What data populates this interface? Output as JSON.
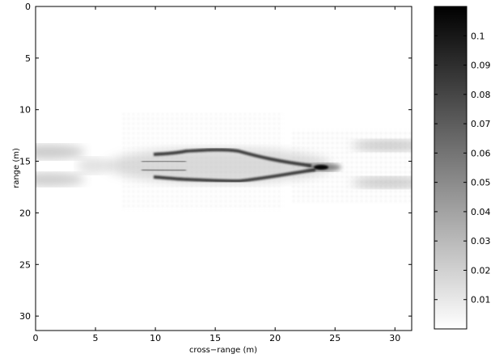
{
  "chart_data": {
    "type": "heatmap",
    "title": "",
    "xlabel": "cross−range (m)",
    "ylabel": "range (m)",
    "xlim": [
      0,
      31.4
    ],
    "ylim": [
      31.4,
      0
    ],
    "y_axis_inverted": true,
    "x_ticks": [
      "0",
      "5",
      "10",
      "15",
      "20",
      "25",
      "30"
    ],
    "y_ticks": [
      "0",
      "5",
      "10",
      "15",
      "20",
      "25",
      "30"
    ],
    "colormap": "gray (white = 0, black = max)",
    "colorbar": {
      "range": [
        0,
        0.11
      ],
      "ticks": [
        "0.01",
        "0.02",
        "0.03",
        "0.04",
        "0.05",
        "0.06",
        "0.07",
        "0.08",
        "0.09",
        "0.1"
      ]
    },
    "features": [
      {
        "feature": "upper edge",
        "x_start": 10.2,
        "x_end": 21.5,
        "y_approx": 14.3,
        "intensity": 0.07
      },
      {
        "feature": "lower edge",
        "x_start": 10.2,
        "x_end": 22.0,
        "y_approx": 16.8,
        "intensity": 0.07
      },
      {
        "feature": "tip",
        "x": 23.7,
        "y": 15.6,
        "intensity": 0.11
      },
      {
        "feature": "left lobes",
        "x_start": 0,
        "x_end": 4.5,
        "y_approx": 15.5,
        "intensity": 0.02
      },
      {
        "feature": "right lobes",
        "x_start": 27.5,
        "x_end": 31.4,
        "y_approx": 15.5,
        "intensity": 0.02
      }
    ]
  },
  "colors": {
    "background": "#ffffff",
    "axis": "#000000"
  }
}
